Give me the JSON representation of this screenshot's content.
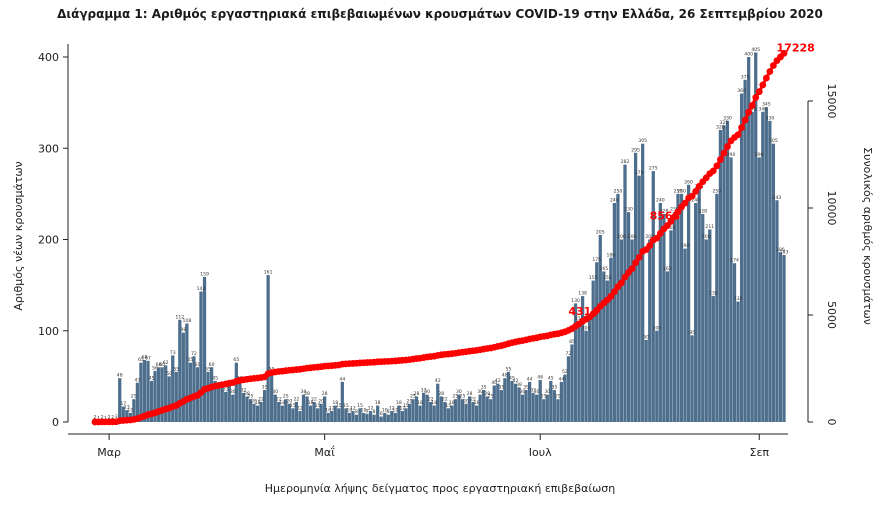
{
  "chart_data": {
    "type": "bar",
    "title": "Διάγραμμα 1: Αριθμός εργαστηριακά επιβεβαιωμένων κρουσμάτων COVID-19 στην Ελλάδα, 26 Σεπτεμβρίου 2020",
    "xlabel": "Ημερομηνία λήψης δείγματος προς εργαστηριακή επιβεβαίωση",
    "ylabel": "Αριθμός νέων κρουσμάτων",
    "y2label": "Συνολικός αριθμός κρουσμάτων",
    "ylim": [
      0,
      430
    ],
    "y2lim": [
      0,
      18500
    ],
    "yticks": [
      0,
      100,
      200,
      300,
      400
    ],
    "y2ticks": [
      0,
      5000,
      10000,
      15000
    ],
    "month_ticks": [
      {
        "label": "Μαρ",
        "day": 4
      },
      {
        "label": "Μαΐ",
        "day": 65
      },
      {
        "label": "Ιουλ",
        "day": 126
      },
      {
        "label": "Σεπ",
        "day": 188
      }
    ],
    "series": [
      {
        "name": "Νέα κρούσματα",
        "color": "#4d6e8c",
        "type": "bar",
        "values": [
          2,
          1,
          2,
          1,
          2,
          2,
          3,
          48,
          17,
          13,
          10,
          25,
          43,
          65,
          68,
          67,
          45,
          56,
          60,
          60,
          62,
          50,
          73,
          55,
          112,
          98,
          108,
          65,
          72,
          60,
          143,
          159,
          55,
          60,
          45,
          37,
          38,
          33,
          40,
          30,
          65,
          45,
          32,
          28,
          25,
          20,
          18,
          22,
          35,
          161,
          55,
          30,
          22,
          18,
          25,
          20,
          15,
          22,
          12,
          30,
          28,
          18,
          22,
          15,
          20,
          28,
          10,
          12,
          18,
          15,
          44,
          15,
          10,
          12,
          8,
          15,
          10,
          9,
          12,
          8,
          18,
          6,
          10,
          8,
          12,
          10,
          18,
          12,
          15,
          20,
          25,
          28,
          18,
          32,
          30,
          22,
          18,
          42,
          28,
          22,
          15,
          18,
          25,
          30,
          25,
          20,
          28,
          22,
          18,
          30,
          35,
          28,
          25,
          40,
          42,
          35,
          48,
          55,
          45,
          42,
          38,
          30,
          35,
          44,
          32,
          30,
          46,
          25,
          30,
          45,
          35,
          25,
          44,
          52,
          72,
          85,
          130,
          110,
          138,
          100,
          112,
          155,
          175,
          205,
          165,
          155,
          180,
          240,
          250,
          200,
          282,
          230,
          200,
          295,
          270,
          305,
          90,
          200,
          275,
          100,
          240,
          228,
          165,
          210,
          230,
          250,
          250,
          190,
          260,
          95,
          240,
          255,
          228,
          200,
          211,
          138,
          250,
          320,
          325,
          330,
          290,
          174,
          132,
          360,
          375,
          400,
          340,
          405,
          290,
          340,
          345,
          330,
          305,
          243,
          186,
          183
        ],
        "labels": [
          2,
          1,
          2,
          1,
          2,
          2,
          3,
          48,
          17,
          13,
          10,
          25,
          43,
          65,
          68,
          67,
          45,
          56,
          60,
          60,
          62,
          50,
          73,
          55,
          112,
          98,
          108,
          65,
          72,
          60,
          143,
          159,
          55,
          60,
          45,
          37,
          38,
          33,
          40,
          30,
          65,
          45,
          32,
          28,
          25,
          20,
          18,
          22,
          35,
          161,
          55,
          30,
          22,
          18,
          25,
          20,
          15,
          22,
          12,
          30,
          28,
          18,
          22,
          15,
          20,
          28,
          10,
          12,
          18,
          15,
          44,
          15,
          10,
          12,
          8,
          15,
          10,
          9,
          12,
          8,
          18,
          6,
          10,
          8,
          12,
          10,
          18,
          12,
          15,
          20,
          25,
          28,
          18,
          32,
          30,
          22,
          18,
          42,
          28,
          22,
          15,
          18,
          25,
          30,
          25,
          20,
          28,
          22,
          18,
          30,
          35,
          28,
          25,
          40,
          42,
          35,
          48,
          55,
          45,
          42,
          38,
          30,
          35,
          44,
          32,
          30,
          46,
          25,
          30,
          45,
          35,
          25,
          44,
          52,
          72,
          85,
          130,
          110,
          138,
          100,
          112,
          155,
          175,
          205,
          165,
          155,
          180,
          240,
          250,
          200,
          282,
          230,
          200,
          295,
          270,
          305,
          90,
          200,
          275,
          100,
          240,
          228,
          165,
          210,
          230,
          250,
          250,
          190,
          260,
          95,
          240,
          255,
          228,
          200,
          211,
          138,
          250,
          320,
          325,
          330,
          290,
          174,
          132,
          360,
          375,
          400,
          340,
          405,
          290,
          340,
          345,
          330,
          305,
          243,
          186,
          183
        ]
      },
      {
        "name": "Συνολικός αριθμός",
        "color": "#ff0000",
        "type": "cumulative-line",
        "axis": "right"
      }
    ],
    "annotations": [
      {
        "text": "4314",
        "day": 140
      },
      {
        "text": "8568",
        "day": 163
      },
      {
        "text": "17228",
        "day": 200
      }
    ]
  }
}
